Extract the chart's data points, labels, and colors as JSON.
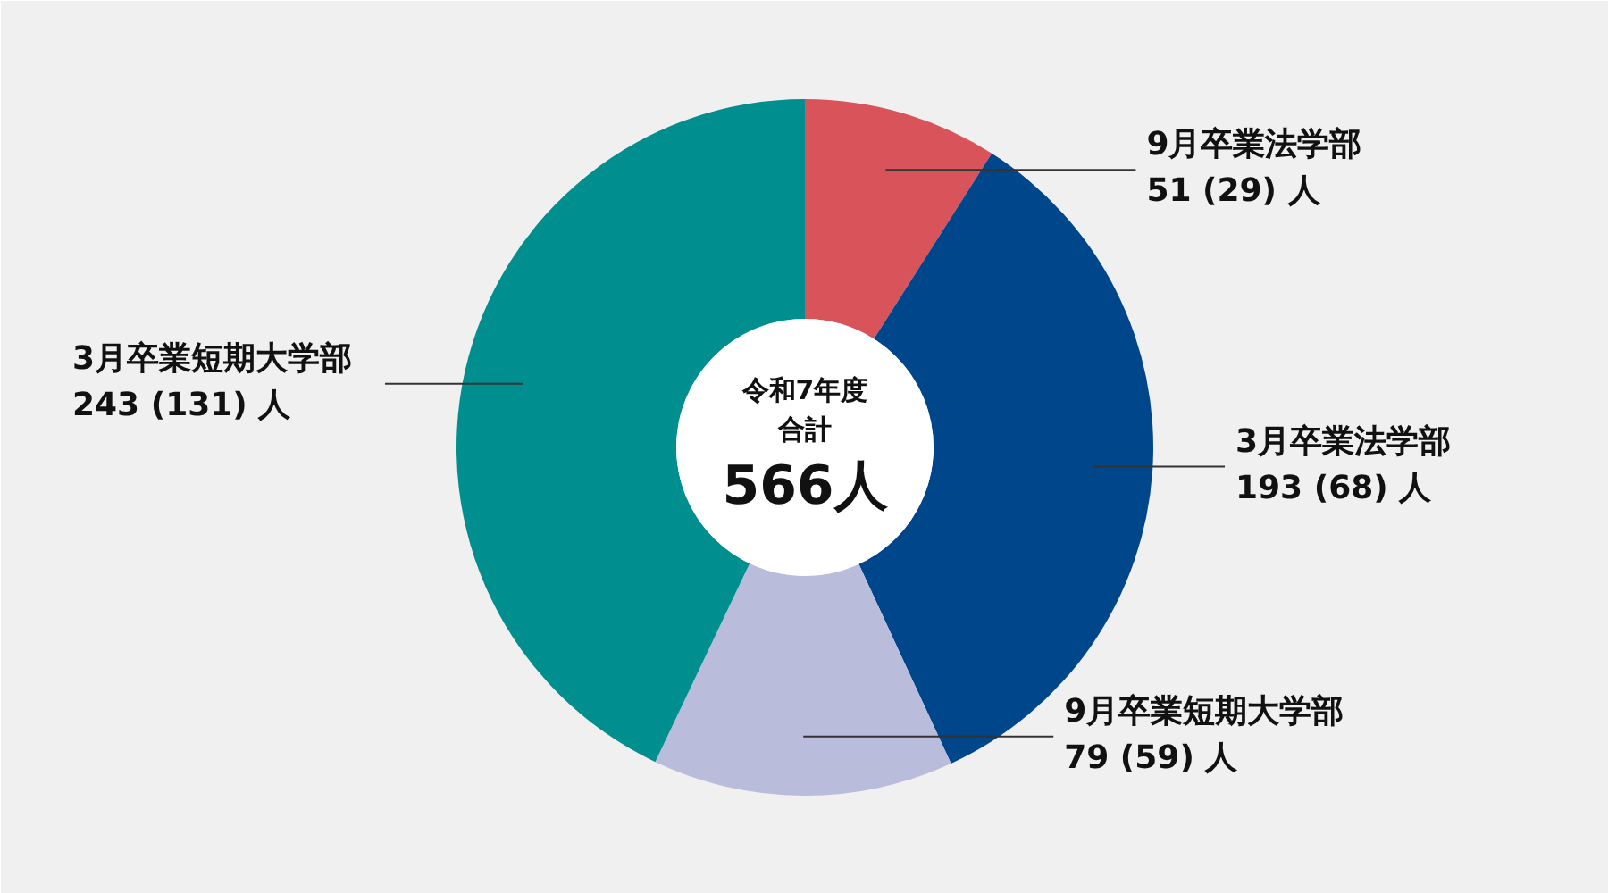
{
  "chart_data": {
    "type": "donut",
    "categories": [
      "9月卒業法学部",
      "3月卒業法学部",
      "9月卒業短期大学部",
      "3月卒業短期大学部"
    ],
    "values": [
      51,
      193,
      79,
      243
    ],
    "value_labels": [
      "51 (29) 人",
      "193 (68) 人",
      "79 (59) 人",
      "243 (131) 人"
    ],
    "colors": [
      "#d9545a",
      "#00468b",
      "#babcdc",
      "#008e8e"
    ],
    "annotations": [
      "令和7年度",
      "合計",
      "566人"
    ]
  }
}
